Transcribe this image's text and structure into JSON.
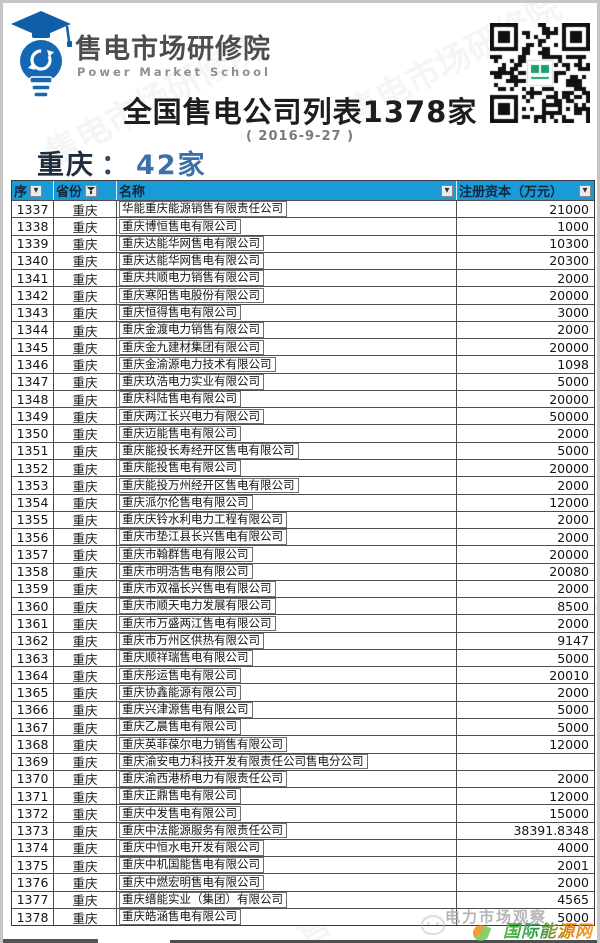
{
  "brand": {
    "name_cn": "售电市场研修院",
    "name_en": "Power Market School"
  },
  "header": {
    "title": "全国售电公司列表1378家",
    "date": "( 2016-9-27 )"
  },
  "section": {
    "province": "重庆",
    "colon": "：",
    "count": "42家"
  },
  "table": {
    "columns": [
      {
        "label": "序",
        "filter_icon": "dropdown-arrow-icon"
      },
      {
        "label": "省份",
        "filter_icon": "filter-funnel-icon"
      },
      {
        "label": "名称",
        "filter_icon": "dropdown-arrow-icon"
      },
      {
        "label": "注册资本（万元）",
        "filter_icon": "dropdown-arrow-icon"
      }
    ],
    "rows": [
      [
        "1337",
        "重庆",
        "华能重庆能源销售有限责任公司",
        "21000"
      ],
      [
        "1338",
        "重庆",
        "重庆博恒售电有限公司",
        "1000"
      ],
      [
        "1339",
        "重庆",
        "重庆达能华网售电有限公司",
        "10300"
      ],
      [
        "1340",
        "重庆",
        "重庆达能华网售电有限公司",
        "20300"
      ],
      [
        "1341",
        "重庆",
        "重庆共顺电力销售有限公司",
        "2000"
      ],
      [
        "1342",
        "重庆",
        "重庆寒阳售电股份有限公司",
        "20000"
      ],
      [
        "1343",
        "重庆",
        "重庆恒得售电有限公司",
        "3000"
      ],
      [
        "1344",
        "重庆",
        "重庆金渡电力销售有限公司",
        "2000"
      ],
      [
        "1345",
        "重庆",
        "重庆金九建材集团有限公司",
        "20000"
      ],
      [
        "1346",
        "重庆",
        "重庆金渝源电力技术有限公司",
        "1098"
      ],
      [
        "1347",
        "重庆",
        "重庆玖浩电力实业有限公司",
        "5000"
      ],
      [
        "1348",
        "重庆",
        "重庆科陆售电有限公司",
        "20000"
      ],
      [
        "1349",
        "重庆",
        "重庆两江长兴电力有限公司",
        "50000"
      ],
      [
        "1350",
        "重庆",
        "重庆迈能售电有限公司",
        "2000"
      ],
      [
        "1351",
        "重庆",
        "重庆能投长寿经开区售电有限公司",
        "5000"
      ],
      [
        "1352",
        "重庆",
        "重庆能投售电有限公司",
        "20000"
      ],
      [
        "1353",
        "重庆",
        "重庆能投万州经开区售电有限公司",
        "2000"
      ],
      [
        "1354",
        "重庆",
        "重庆派尔伦售电有限公司",
        "12000"
      ],
      [
        "1355",
        "重庆",
        "重庆庆铃水利电力工程有限公司",
        "2000"
      ],
      [
        "1356",
        "重庆",
        "重庆市垫江县长兴售电有限公司",
        "2000"
      ],
      [
        "1357",
        "重庆",
        "重庆市翰群售电有限公司",
        "20000"
      ],
      [
        "1358",
        "重庆",
        "重庆市明浩售电有限公司",
        "20080"
      ],
      [
        "1359",
        "重庆",
        "重庆市双福长兴售电有限公司",
        "2000"
      ],
      [
        "1360",
        "重庆",
        "重庆市顺天电力发展有限公司",
        "8500"
      ],
      [
        "1361",
        "重庆",
        "重庆市万盛两江售电有限公司",
        "2000"
      ],
      [
        "1362",
        "重庆",
        "重庆市万州区供热有限公司",
        "9147"
      ],
      [
        "1363",
        "重庆",
        "重庆顺祥瑞售电有限公司",
        "5000"
      ],
      [
        "1364",
        "重庆",
        "重庆彤运售电有限公司",
        "20010"
      ],
      [
        "1365",
        "重庆",
        "重庆协鑫能源有限公司",
        "2000"
      ],
      [
        "1366",
        "重庆",
        "重庆兴津源售电有限公司",
        "5000"
      ],
      [
        "1367",
        "重庆",
        "重庆乙晨售电有限公司",
        "5000"
      ],
      [
        "1368",
        "重庆",
        "重庆英菲葆尔电力销售有限公司",
        "12000"
      ],
      [
        "1369",
        "重庆",
        "重庆渝安电力科技开发有限责任公司售电分公司",
        ""
      ],
      [
        "1370",
        "重庆",
        "重庆渝西港桥电力有限责任公司",
        "2000"
      ],
      [
        "1371",
        "重庆",
        "重庆正鼎售电有限公司",
        "12000"
      ],
      [
        "1372",
        "重庆",
        "重庆中发售电有限公司",
        "15000"
      ],
      [
        "1373",
        "重庆",
        "重庆中法能源服务有限责任公司",
        "38391.8348"
      ],
      [
        "1374",
        "重庆",
        "重庆中恒水电开发有限公司",
        "4000"
      ],
      [
        "1375",
        "重庆",
        "重庆中机国能售电有限公司",
        "2001"
      ],
      [
        "1376",
        "重庆",
        "重庆中燃宏明售电有限公司",
        "2000"
      ],
      [
        "1377",
        "重庆",
        "重庆缙能实业（集团）有限公司",
        "4565"
      ],
      [
        "1378",
        "重庆",
        "重庆皓涵售电有限公司",
        "5000"
      ]
    ]
  },
  "footer": {
    "watermark_gray": "电力市场观察",
    "watermark_color": "国际能源网"
  },
  "colors": {
    "table_header_bg": "#189bd7",
    "logo_blue": "#1467b3",
    "count_blue": "#3f6fa8",
    "qr_center_green": "#17a26a"
  }
}
